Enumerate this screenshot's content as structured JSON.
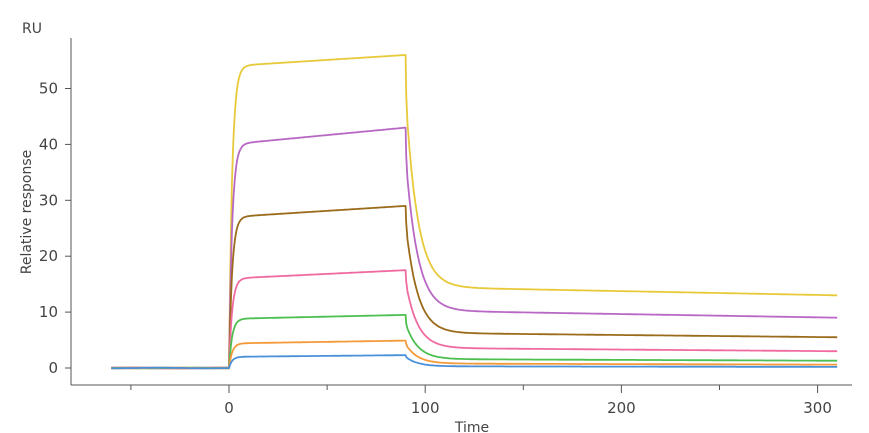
{
  "chart_data": {
    "type": "line",
    "title": "",
    "xlabel": "Time",
    "ylabel": "Relative response",
    "y_unit": "RU",
    "xlim": [
      -62,
      318
    ],
    "ylim": [
      -2,
      58
    ],
    "x_ticks": [
      0,
      100,
      200,
      300
    ],
    "y_ticks": [
      0,
      10,
      20,
      30,
      40,
      50
    ],
    "grid": false,
    "legend": "none",
    "injection_start": 0,
    "injection_end": 90,
    "x_end": 310,
    "series": [
      {
        "color": "#e8c93a",
        "plateau_start": 54.0,
        "plateau_end": 56.0,
        "tail": 13.0,
        "tail_mid": 14.5,
        "drop_at_end": 7
      },
      {
        "color": "#b868c4",
        "plateau_start": 40.0,
        "plateau_end": 43.0,
        "tail": 9.0,
        "tail_mid": 10.3,
        "drop_at_end": 5
      },
      {
        "color": "#9a6b1a",
        "plateau_start": 27.0,
        "plateau_end": 29.0,
        "tail": 5.5,
        "tail_mid": 6.3,
        "drop_at_end": 3
      },
      {
        "color": "#f06aa0",
        "plateau_start": 16.0,
        "plateau_end": 17.5,
        "tail": 3.0,
        "tail_mid": 3.6,
        "drop_at_end": 2
      },
      {
        "color": "#4cbf50",
        "plateau_start": 8.8,
        "plateau_end": 9.5,
        "tail": 1.3,
        "tail_mid": 1.6,
        "drop_at_end": 1.5
      },
      {
        "color": "#f59a3a",
        "plateau_start": 4.4,
        "plateau_end": 4.9,
        "tail": 0.6,
        "tail_mid": 0.8,
        "drop_at_end": 0.6
      },
      {
        "color": "#4a90d9",
        "plateau_start": 2.0,
        "plateau_end": 2.3,
        "tail": 0.2,
        "tail_mid": 0.3,
        "drop_at_end": 0.3
      }
    ]
  },
  "axis": {
    "y_unit_label": "RU",
    "x_title": "Time",
    "y_title": "Relative response"
  }
}
